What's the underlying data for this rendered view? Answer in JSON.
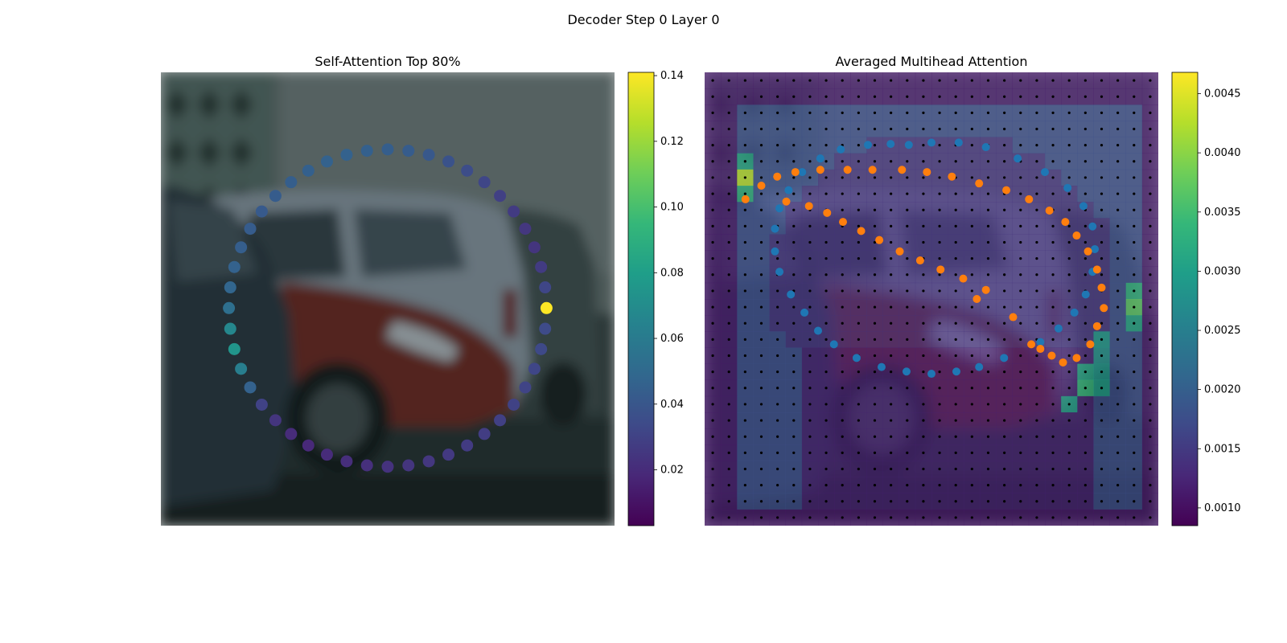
{
  "figure": {
    "suptitle": "Decoder Step 0 Layer 0"
  },
  "colors": {
    "viridis": [
      "#440154",
      "#482878",
      "#3e4a89",
      "#31688e",
      "#26828e",
      "#1f9e89",
      "#35b779",
      "#6ece58",
      "#b5de2b",
      "#fde725"
    ],
    "blue_points": "#1f77b4",
    "orange_points": "#ff7f0e",
    "grid_dots": "#000000"
  },
  "chart_data": [
    {
      "type": "scatter",
      "title": "Self-Attention Top 80%",
      "description_of_marks": "Points arranged in a circle over a blurred photo of parked cars, colored by attention weight",
      "colorbar": {
        "vmin": 0.003,
        "vmax": 0.141,
        "ticks": [
          0.02,
          0.04,
          0.06,
          0.08,
          0.1,
          0.12,
          0.14
        ],
        "tick_labels": [
          "0.02",
          "0.04",
          "0.06",
          "0.08",
          "0.10",
          "0.12",
          "0.14"
        ]
      },
      "points": {
        "count": 48,
        "center": [
          0.5,
          0.52
        ],
        "radius": 0.35,
        "values": [
          0.144,
          0.032,
          0.027,
          0.024,
          0.025,
          0.027,
          0.029,
          0.032,
          0.035,
          0.038,
          0.041,
          0.043,
          0.044,
          0.045,
          0.046,
          0.046,
          0.045,
          0.044,
          0.043,
          0.042,
          0.043,
          0.044,
          0.046,
          0.048,
          0.053,
          0.067,
          0.075,
          0.062,
          0.046,
          0.03,
          0.024,
          0.02,
          0.019,
          0.02,
          0.021,
          0.022,
          0.023,
          0.024,
          0.025,
          0.026,
          0.027,
          0.028,
          0.029,
          0.03,
          0.031,
          0.032,
          0.033,
          0.034
        ]
      }
    },
    {
      "type": "heatmap",
      "title": "Averaged Multihead Attention",
      "description_of_marks": "28x28 attention heatmap blended over the photo, with a black reference-point grid and two sets of sampling points",
      "colorbar": {
        "vmin": 0.00085,
        "vmax": 0.00468,
        "ticks": [
          0.001,
          0.0015,
          0.002,
          0.0025,
          0.003,
          0.0035,
          0.004,
          0.0045
        ],
        "tick_labels": [
          "0.0010",
          "0.0015",
          "0.0020",
          "0.0025",
          "0.0030",
          "0.0035",
          "0.0040",
          "0.0045"
        ]
      },
      "grid": {
        "rows": 28,
        "cols": 28
      },
      "hotspots": [
        {
          "row": 6,
          "col": 2,
          "value": 0.0043
        },
        {
          "row": 7,
          "col": 2,
          "value": 0.0033
        },
        {
          "row": 5,
          "col": 2,
          "value": 0.0031
        },
        {
          "row": 14,
          "col": 26,
          "value": 0.0037
        },
        {
          "row": 13,
          "col": 26,
          "value": 0.0033
        },
        {
          "row": 15,
          "col": 26,
          "value": 0.0031
        },
        {
          "row": 19,
          "col": 23,
          "value": 0.0034
        },
        {
          "row": 18,
          "col": 23,
          "value": 0.0031
        },
        {
          "row": 19,
          "col": 24,
          "value": 0.003
        },
        {
          "row": 20,
          "col": 22,
          "value": 0.003
        },
        {
          "row": 18,
          "col": 24,
          "value": 0.0029
        },
        {
          "row": 16,
          "col": 24,
          "value": 0.0029
        },
        {
          "row": 17,
          "col": 24,
          "value": 0.0028
        }
      ],
      "series": [
        {
          "color": "blue",
          "points": [
            [
              0.45,
              0.16
            ],
            [
              0.5,
              0.155
            ],
            [
              0.56,
              0.155
            ],
            [
              0.62,
              0.165
            ],
            [
              0.69,
              0.19
            ],
            [
              0.75,
              0.22
            ],
            [
              0.8,
              0.255
            ],
            [
              0.835,
              0.295
            ],
            [
              0.855,
              0.34
            ],
            [
              0.86,
              0.39
            ],
            [
              0.855,
              0.44
            ],
            [
              0.84,
              0.49
            ],
            [
              0.815,
              0.53
            ],
            [
              0.78,
              0.565
            ],
            [
              0.74,
              0.595
            ],
            [
              0.66,
              0.63
            ],
            [
              0.605,
              0.65
            ],
            [
              0.555,
              0.66
            ],
            [
              0.5,
              0.665
            ],
            [
              0.445,
              0.66
            ],
            [
              0.39,
              0.65
            ],
            [
              0.335,
              0.63
            ],
            [
              0.285,
              0.6
            ],
            [
              0.25,
              0.57
            ],
            [
              0.22,
              0.53
            ],
            [
              0.19,
              0.49
            ],
            [
              0.165,
              0.44
            ],
            [
              0.155,
              0.395
            ],
            [
              0.155,
              0.345
            ],
            [
              0.165,
              0.3
            ],
            [
              0.185,
              0.26
            ],
            [
              0.215,
              0.22
            ],
            [
              0.255,
              0.19
            ],
            [
              0.3,
              0.17
            ],
            [
              0.36,
              0.16
            ],
            [
              0.41,
              0.158
            ]
          ]
        },
        {
          "color": "orange",
          "points": [
            [
              0.09,
              0.28
            ],
            [
              0.125,
              0.25
            ],
            [
              0.16,
              0.23
            ],
            [
              0.2,
              0.22
            ],
            [
              0.255,
              0.215
            ],
            [
              0.315,
              0.215
            ],
            [
              0.37,
              0.215
            ],
            [
              0.435,
              0.215
            ],
            [
              0.49,
              0.22
            ],
            [
              0.545,
              0.23
            ],
            [
              0.605,
              0.245
            ],
            [
              0.665,
              0.26
            ],
            [
              0.715,
              0.28
            ],
            [
              0.76,
              0.305
            ],
            [
              0.795,
              0.33
            ],
            [
              0.82,
              0.36
            ],
            [
              0.845,
              0.395
            ],
            [
              0.865,
              0.435
            ],
            [
              0.875,
              0.475
            ],
            [
              0.88,
              0.52
            ],
            [
              0.865,
              0.56
            ],
            [
              0.85,
              0.6
            ],
            [
              0.82,
              0.63
            ],
            [
              0.79,
              0.64
            ],
            [
              0.765,
              0.625
            ],
            [
              0.74,
              0.61
            ],
            [
              0.72,
              0.6
            ],
            [
              0.68,
              0.54
            ],
            [
              0.62,
              0.48
            ],
            [
              0.6,
              0.5
            ],
            [
              0.57,
              0.455
            ],
            [
              0.52,
              0.435
            ],
            [
              0.475,
              0.415
            ],
            [
              0.43,
              0.395
            ],
            [
              0.385,
              0.37
            ],
            [
              0.345,
              0.35
            ],
            [
              0.305,
              0.33
            ],
            [
              0.27,
              0.31
            ],
            [
              0.23,
              0.295
            ],
            [
              0.18,
              0.285
            ]
          ]
        }
      ]
    }
  ]
}
